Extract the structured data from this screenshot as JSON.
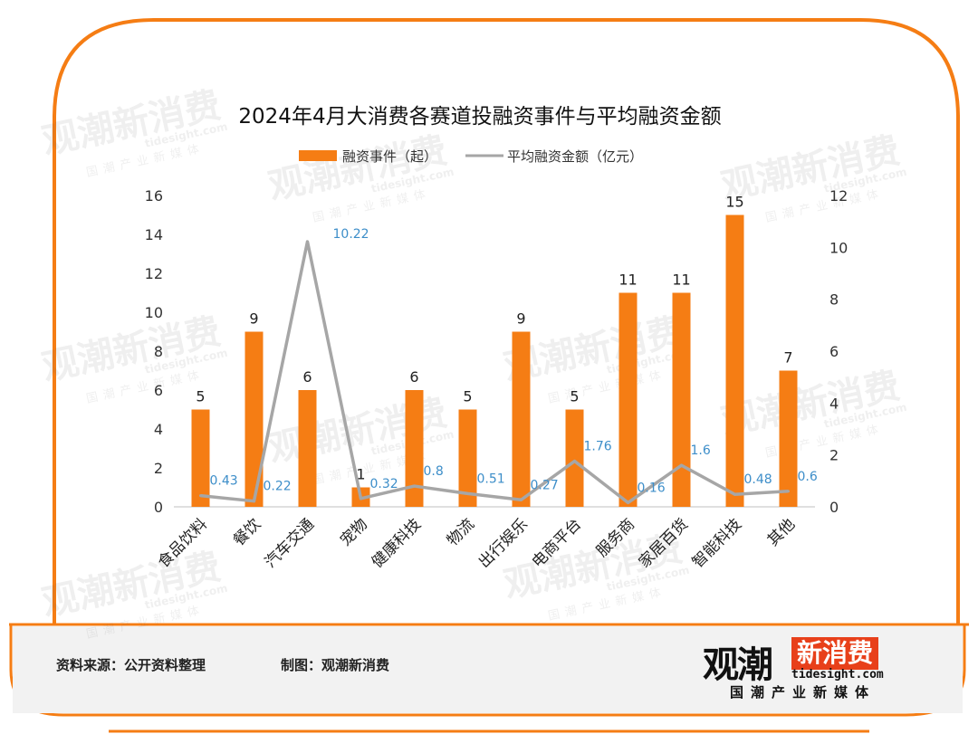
{
  "chart_data": {
    "type": "bar",
    "title": "2024年4月大消费各赛道投融资事件与平均融资金额",
    "categories": [
      "食品饮料",
      "餐饮",
      "汽车交通",
      "宠物",
      "健康科技",
      "物流",
      "出行娱乐",
      "电商平台",
      "服务商",
      "家居百货",
      "智能科技",
      "其他"
    ],
    "series": [
      {
        "name": "融资事件（起）",
        "type": "bar",
        "axis": "left",
        "values": [
          5,
          9,
          6,
          1,
          6,
          5,
          9,
          5,
          11,
          11,
          15,
          7
        ],
        "labels": [
          "5",
          "9",
          "6",
          "1",
          "6",
          "5",
          "9",
          "5",
          "11",
          "11",
          "15",
          "7"
        ],
        "color": "#f57d14"
      },
      {
        "name": "平均融资金额（亿元）",
        "type": "line",
        "axis": "right",
        "values": [
          0.43,
          0.22,
          10.22,
          0.32,
          0.8,
          0.51,
          0.27,
          1.76,
          0.16,
          1.6,
          0.48,
          0.6
        ],
        "labels": [
          "0.43",
          "0.22",
          "10.22",
          "0.32",
          "0.8",
          "0.51",
          "0.27",
          "1.76",
          "0.16",
          "1.6",
          "0.48",
          "0.6"
        ],
        "color": "#a6a6a6",
        "label_color": "#3d8ec9"
      }
    ],
    "y_left": {
      "min": 0,
      "max": 16,
      "ticks": [
        "0",
        "2",
        "4",
        "6",
        "8",
        "10",
        "12",
        "14",
        "16"
      ]
    },
    "y_right": {
      "min": 0,
      "max": 12,
      "ticks": [
        "0",
        "2",
        "4",
        "6",
        "8",
        "10",
        "12"
      ]
    },
    "legend_position": "top-center",
    "grid": false
  },
  "footer": {
    "source": "资料来源：公开资料整理",
    "maker": "制图：观潮新消费"
  },
  "logo": {
    "main": "观潮",
    "box": "新消费",
    "url": "tidesight.com",
    "sub": "国潮产业新媒体"
  },
  "watermark": {
    "main": "观潮新消费",
    "url": "tidesight.com",
    "sub": "国潮产业新媒体"
  },
  "colors": {
    "frame": "#f57d14",
    "bar": "#f57d14",
    "line": "#a6a6a6",
    "line_label": "#3d8ec9"
  }
}
